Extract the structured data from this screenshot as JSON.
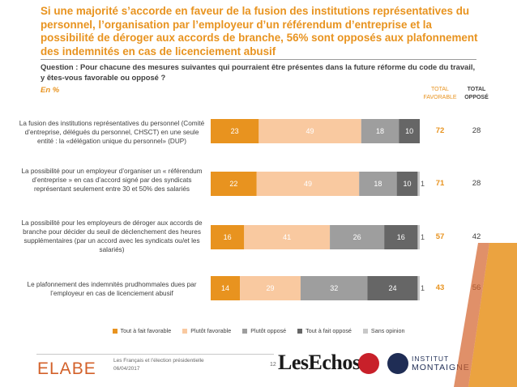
{
  "header": {
    "headline": "Si une majorité s’accorde en faveur de la fusion des institutions représentatives du personnel, l’organisation par l’employeur d’un référendum d’entreprise et la possibilité de déroger aux accords de branche, 56% sont opposés aux plafonnement des indemnités en cas de licenciement abusif",
    "question": "Question : Pour chacune des mesures suivantes qui pourraient être présentes dans la future réforme du code du travail, y êtes-vous favorable ou opposé ?",
    "unit": "En %",
    "col_favorable": "TOTAL FAVORABLE",
    "col_oppose": "TOTAL OPPOSÉ"
  },
  "chart_data": {
    "type": "bar",
    "orientation": "horizontal",
    "stacked": true,
    "xlim": [
      0,
      100
    ],
    "categories": [
      "La fusion des institutions représentatives du personnel (Comité d’entreprise, délégués du personnel, CHSCT) en une seule entité : la «délégation unique du personnel» (DUP)",
      "La possibilité pour un employeur d’organiser un « référendum d’entreprise » en cas d’accord signé par des syndicats représentant seulement entre 30 et 50% des salariés",
      "La possibilité pour les employeurs de déroger aux accords de branche pour décider du seuil de déclenchement des heures supplémentaires (par un accord avec les syndicats ou/et les salariés)",
      "Le plafonnement des indemnités prudhommales dues par l’employeur en cas de licenciement abusif"
    ],
    "series": [
      {
        "name": "Tout à fait favorable",
        "color": "#e8931f",
        "values": [
          23,
          22,
          16,
          14
        ]
      },
      {
        "name": "Plutôt favorable",
        "color": "#f9c9a0",
        "values": [
          49,
          49,
          41,
          29
        ]
      },
      {
        "name": "Plutôt opposé",
        "color": "#9e9e9e",
        "values": [
          18,
          18,
          26,
          32
        ]
      },
      {
        "name": "Tout à fait opposé",
        "color": "#666666",
        "values": [
          10,
          10,
          16,
          24
        ]
      },
      {
        "name": "Sans opinion",
        "color": "#c8c8c8",
        "values": [
          0,
          1,
          1,
          1
        ]
      }
    ],
    "segment_labels": [
      [
        "23",
        "49",
        "18",
        "10",
        ""
      ],
      [
        "22",
        "49",
        "18",
        "10",
        "1"
      ],
      [
        "16",
        "41",
        "26",
        "16",
        "1"
      ],
      [
        "14",
        "29",
        "32",
        "24",
        "1"
      ]
    ],
    "total_favorable": [
      "72",
      "71",
      "57",
      "43"
    ],
    "total_oppose": [
      "28",
      "28",
      "42",
      "56"
    ],
    "legend_position": "bottom"
  },
  "footer": {
    "logo": "ELABE",
    "line1": "Les Français et l’élection présidentielle",
    "line2": "06/04/2017",
    "page": "12",
    "partner1": "LesEchos",
    "partner2_line1": "INSTITUT",
    "partner2_line2": "MONTAIGNE"
  }
}
